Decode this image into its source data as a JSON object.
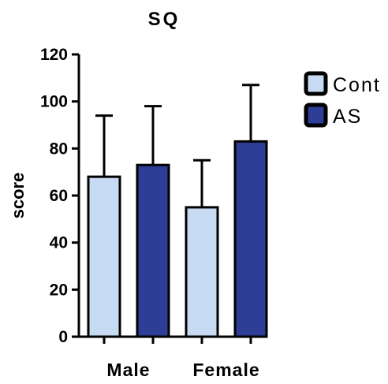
{
  "chart_data": {
    "type": "bar",
    "title": "SQ",
    "xlabel": "",
    "ylabel": "score",
    "ylim": [
      0,
      120
    ],
    "yticks": [
      0,
      20,
      40,
      60,
      80,
      100,
      120
    ],
    "categories": [
      "Male",
      "Female"
    ],
    "series": [
      {
        "name": "Cont",
        "color": "#c6daf1",
        "values": [
          68,
          55
        ],
        "errors": [
          26,
          20
        ]
      },
      {
        "name": "AS",
        "color": "#2e3d96",
        "values": [
          73,
          83
        ],
        "errors": [
          25,
          24
        ]
      }
    ],
    "error_bars": "upper",
    "legend": "right",
    "grid": false
  }
}
